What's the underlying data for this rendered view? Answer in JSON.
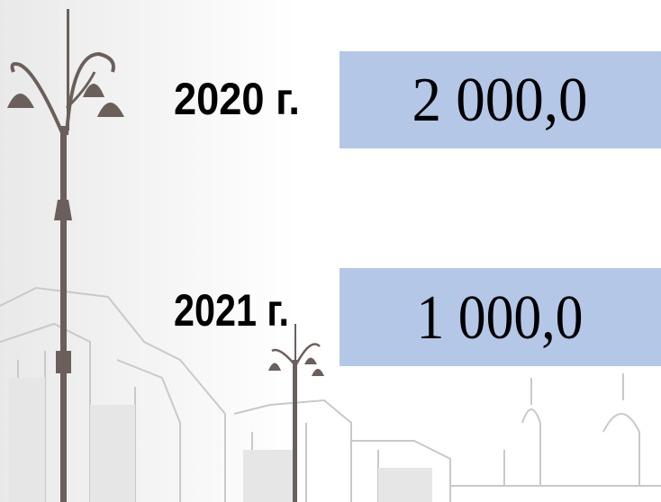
{
  "rows": [
    {
      "year": "2020 г.",
      "value": "2 000,0"
    },
    {
      "year": "2021 г.",
      "value": "1 000,0"
    }
  ]
}
